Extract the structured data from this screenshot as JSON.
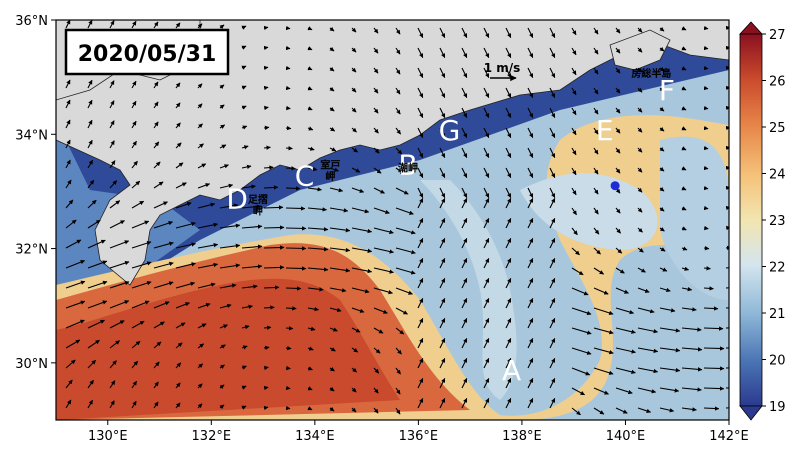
{
  "title_box": {
    "date": "2020/05/31"
  },
  "scale_label": "1 m/s",
  "map": {
    "lon_range": [
      129,
      142
    ],
    "lat_range": [
      29,
      36
    ],
    "lon_ticks": [
      "130°E",
      "132°E",
      "134°E",
      "136°E",
      "138°E",
      "140°E",
      "142°E"
    ],
    "lat_ticks": [
      "30°N",
      "32°N",
      "34°N",
      "36°N"
    ],
    "labels": [
      {
        "text": "A",
        "lon": 137.8,
        "lat": 29.7
      },
      {
        "text": "B",
        "lon": 135.8,
        "lat": 33.3
      },
      {
        "text": "C",
        "lon": 133.8,
        "lat": 33.1
      },
      {
        "text": "D",
        "lon": 132.5,
        "lat": 32.7
      },
      {
        "text": "E",
        "lon": 139.6,
        "lat": 33.9
      },
      {
        "text": "F",
        "lon": 140.8,
        "lat": 34.6
      },
      {
        "text": "G",
        "lon": 136.6,
        "lat": 33.9
      }
    ],
    "place_names": [
      {
        "text": "室戸",
        "lon": 134.3,
        "lat": 33.4
      },
      {
        "text": "岬",
        "lon": 134.3,
        "lat": 33.2
      },
      {
        "text": "潮岬",
        "lon": 135.8,
        "lat": 33.35
      },
      {
        "text": "足摺",
        "lon": 132.9,
        "lat": 32.8
      },
      {
        "text": "岬",
        "lon": 132.9,
        "lat": 32.6
      },
      {
        "text": "房総半島",
        "lon": 140.5,
        "lat": 35.0
      }
    ],
    "marker": {
      "lon": 139.8,
      "lat": 33.1,
      "color": "#1f2bd6"
    }
  },
  "colorbar": {
    "min": 19,
    "max": 27,
    "ticks": [
      "19",
      "20",
      "21",
      "22",
      "23",
      "24",
      "25",
      "26",
      "27"
    ],
    "colors": [
      "#2b3a8f",
      "#4a74b4",
      "#8fb8d8",
      "#d4e5ee",
      "#f2e5b0",
      "#f5c27a",
      "#e8874a",
      "#c94a2c",
      "#8a1020"
    ]
  }
}
